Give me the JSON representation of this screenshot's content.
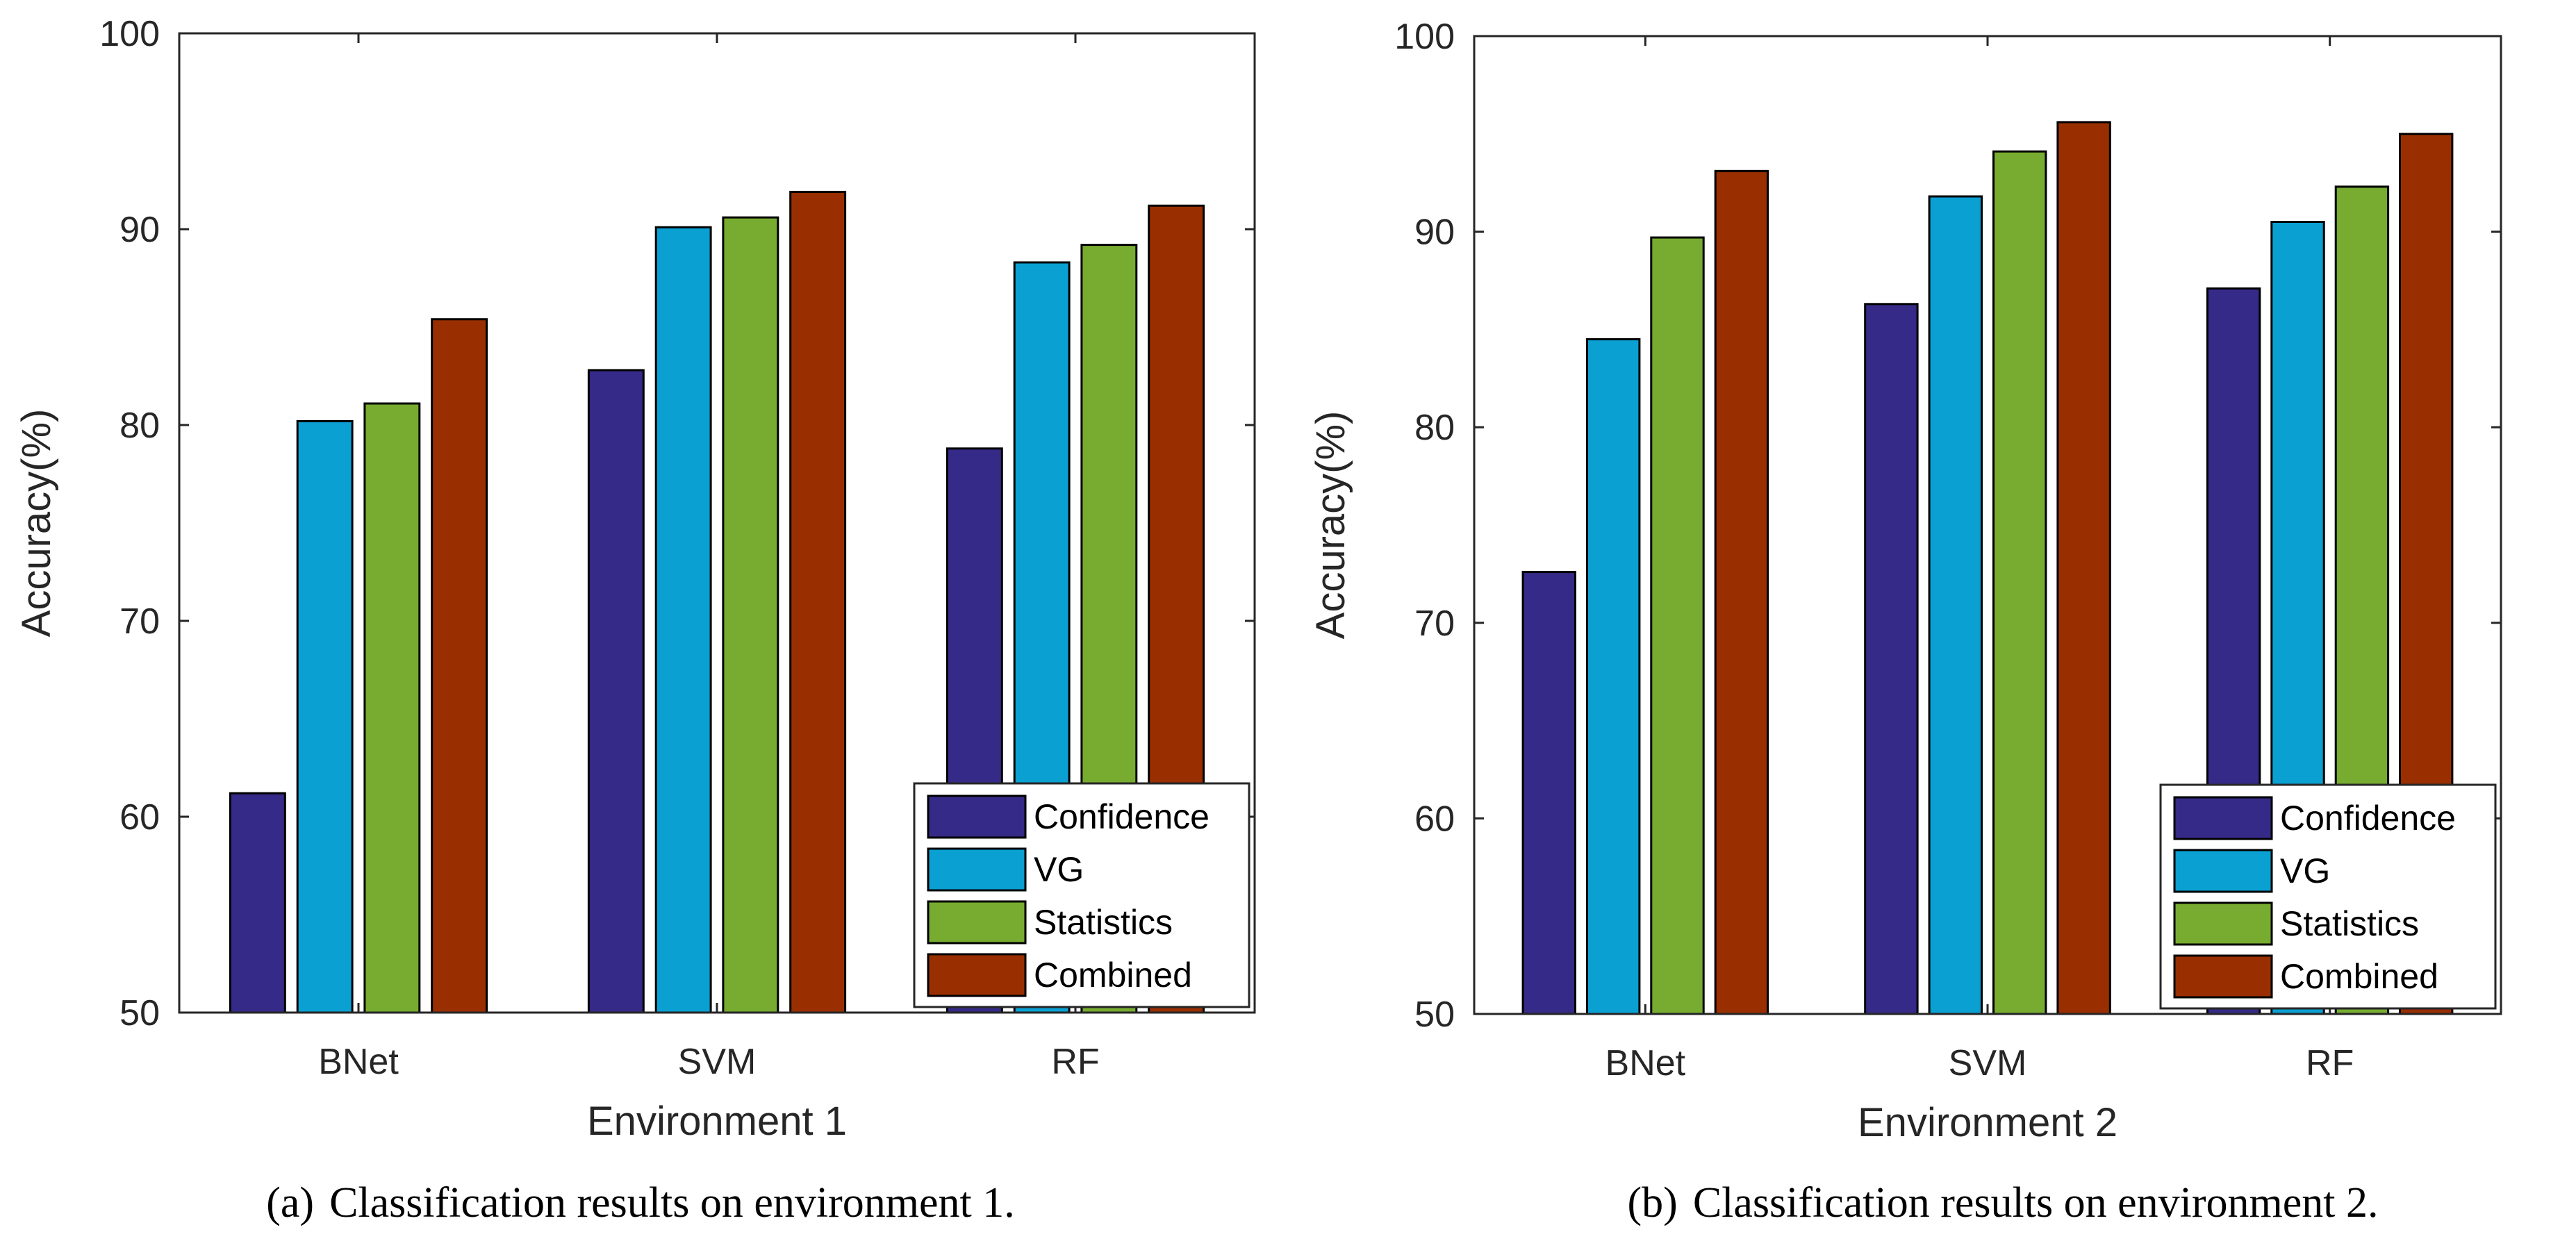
{
  "chart_data": [
    {
      "type": "bar",
      "panel_label": "(a)",
      "caption": "Classification results on environment 1.",
      "categories": [
        "BNet",
        "SVM",
        "RF"
      ],
      "series": [
        {
          "name": "Confidence",
          "color": "#352A87",
          "values": [
            61.2,
            82.8,
            78.8
          ]
        },
        {
          "name": "VG",
          "color": "#0AA0D2",
          "values": [
            80.2,
            90.1,
            88.3
          ]
        },
        {
          "name": "Statistics",
          "color": "#77AC30",
          "values": [
            81.1,
            90.6,
            89.2
          ]
        },
        {
          "name": "Combined",
          "color": "#992F00",
          "values": [
            85.4,
            91.9,
            91.2
          ]
        }
      ],
      "xlabel": "Environment 1",
      "ylabel": "Accuracy(%)",
      "ylim": [
        50,
        100
      ],
      "yticks": [
        50,
        60,
        70,
        80,
        90,
        100
      ],
      "legend_position": "bottom-right",
      "grid": false
    },
    {
      "type": "bar",
      "panel_label": "(b)",
      "caption": "Classification results on environment 2.",
      "categories": [
        "BNet",
        "SVM",
        "RF"
      ],
      "series": [
        {
          "name": "Confidence",
          "color": "#352A87",
          "values": [
            72.6,
            86.3,
            87.1
          ]
        },
        {
          "name": "VG",
          "color": "#0AA0D2",
          "values": [
            84.5,
            91.8,
            90.5
          ]
        },
        {
          "name": "Statistics",
          "color": "#77AC30",
          "values": [
            89.7,
            94.1,
            92.3
          ]
        },
        {
          "name": "Combined",
          "color": "#992F00",
          "values": [
            93.1,
            95.6,
            95.0
          ]
        }
      ],
      "xlabel": "Environment 2",
      "ylabel": "Accuracy(%)",
      "ylim": [
        50,
        100
      ],
      "yticks": [
        50,
        60,
        70,
        80,
        90,
        100
      ],
      "legend_position": "bottom-right",
      "grid": false
    }
  ]
}
